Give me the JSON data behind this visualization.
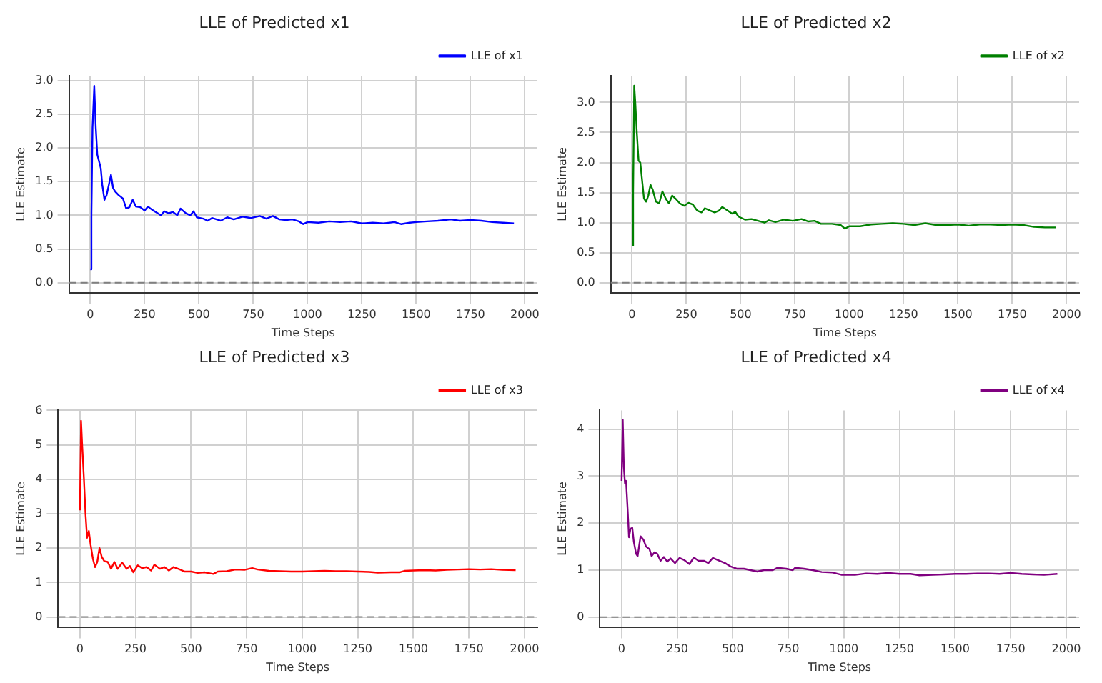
{
  "chart_data": [
    {
      "type": "line",
      "title": "LLE of Predicted x1",
      "xlabel": "Time Steps",
      "ylabel": "LLE Estimate",
      "xlim": [
        -98,
        2058
      ],
      "xticks": [
        0,
        250,
        500,
        750,
        1000,
        1250,
        1500,
        1750,
        2000
      ],
      "ylim": [
        -0.146,
        3.066
      ],
      "yticks": [
        {
          "value": 0,
          "label": "0.0"
        },
        {
          "value": 0.5,
          "label": "0.5"
        },
        {
          "value": 1,
          "label": "1.0"
        },
        {
          "value": 1.5,
          "label": "1.5"
        },
        {
          "value": 2,
          "label": "2.0"
        },
        {
          "value": 2.5,
          "label": "2.5"
        },
        {
          "value": 3,
          "label": "3.0"
        }
      ],
      "grid": true,
      "legend": "top right",
      "ref_lines": [
        {
          "axis": "y",
          "value": 0,
          "color": "#808080",
          "line_style": "dashed"
        }
      ],
      "series": [
        {
          "name": "LLE of x1",
          "color": "#0000ff",
          "x": [
            0,
            5,
            10,
            18,
            25,
            32,
            40,
            48,
            55,
            65,
            75,
            85,
            95,
            105,
            115,
            130,
            150,
            165,
            180,
            195,
            210,
            230,
            250,
            265,
            285,
            310,
            325,
            340,
            360,
            380,
            400,
            415,
            440,
            460,
            475,
            490,
            520,
            540,
            560,
            600,
            630,
            660,
            700,
            740,
            780,
            810,
            840,
            870,
            900,
            930,
            960,
            980,
            1000,
            1050,
            1100,
            1150,
            1200,
            1250,
            1300,
            1350,
            1400,
            1430,
            1470,
            1500,
            1550,
            1600,
            1660,
            1700,
            1750,
            1800,
            1850,
            1900,
            1950
          ],
          "values": [
            0.2,
            1.0,
            2.3,
            2.92,
            2.3,
            1.9,
            1.8,
            1.7,
            1.45,
            1.23,
            1.3,
            1.45,
            1.6,
            1.4,
            1.35,
            1.3,
            1.25,
            1.1,
            1.12,
            1.23,
            1.13,
            1.12,
            1.07,
            1.13,
            1.08,
            1.03,
            1.0,
            1.06,
            1.03,
            1.05,
            1.0,
            1.1,
            1.03,
            1.0,
            1.06,
            0.97,
            0.95,
            0.92,
            0.96,
            0.92,
            0.97,
            0.94,
            0.98,
            0.96,
            0.99,
            0.95,
            0.99,
            0.94,
            0.93,
            0.94,
            0.91,
            0.87,
            0.9,
            0.89,
            0.91,
            0.9,
            0.91,
            0.88,
            0.89,
            0.88,
            0.9,
            0.87,
            0.89,
            0.9,
            0.91,
            0.92,
            0.94,
            0.92,
            0.93,
            0.92,
            0.9,
            0.89,
            0.88
          ]
        }
      ]
    },
    {
      "type": "line",
      "title": "LLE of Predicted x2",
      "xlabel": "Time Steps",
      "ylabel": "LLE Estimate",
      "xlim": [
        -98,
        2058
      ],
      "xticks": [
        0,
        250,
        500,
        750,
        1000,
        1250,
        1500,
        1750,
        2000
      ],
      "ylim": [
        -0.164,
        3.44
      ],
      "yticks": [
        {
          "value": 0,
          "label": "0.0"
        },
        {
          "value": 0.5,
          "label": "0.5"
        },
        {
          "value": 1,
          "label": "1.0"
        },
        {
          "value": 1.5,
          "label": "1.5"
        },
        {
          "value": 2,
          "label": "2.0"
        },
        {
          "value": 2.5,
          "label": "2.5"
        },
        {
          "value": 3,
          "label": "3.0"
        }
      ],
      "grid": true,
      "legend": "top right",
      "ref_lines": [
        {
          "axis": "y",
          "value": 0,
          "color": "#808080",
          "line_style": "dashed"
        }
      ],
      "series": [
        {
          "name": "LLE of x2",
          "color": "#008000",
          "x": [
            0,
            5,
            10,
            15,
            22,
            30,
            38,
            45,
            55,
            65,
            75,
            85,
            95,
            110,
            125,
            140,
            155,
            170,
            185,
            200,
            220,
            240,
            260,
            280,
            300,
            320,
            335,
            360,
            380,
            400,
            415,
            440,
            460,
            475,
            490,
            520,
            550,
            580,
            610,
            630,
            660,
            700,
            740,
            780,
            810,
            840,
            870,
            920,
            960,
            980,
            1000,
            1050,
            1100,
            1150,
            1200,
            1250,
            1300,
            1350,
            1400,
            1450,
            1500,
            1550,
            1600,
            1650,
            1700,
            1750,
            1800,
            1850,
            1900,
            1950
          ],
          "values": [
            0.62,
            1.5,
            3.28,
            3.0,
            2.5,
            2.03,
            2.0,
            1.75,
            1.4,
            1.35,
            1.45,
            1.63,
            1.55,
            1.35,
            1.32,
            1.52,
            1.4,
            1.32,
            1.45,
            1.4,
            1.32,
            1.28,
            1.33,
            1.3,
            1.2,
            1.17,
            1.24,
            1.2,
            1.17,
            1.2,
            1.26,
            1.2,
            1.15,
            1.18,
            1.1,
            1.05,
            1.06,
            1.03,
            1.0,
            1.04,
            1.01,
            1.05,
            1.03,
            1.06,
            1.02,
            1.03,
            0.98,
            0.98,
            0.96,
            0.9,
            0.94,
            0.94,
            0.97,
            0.98,
            0.99,
            0.98,
            0.96,
            0.99,
            0.96,
            0.96,
            0.97,
            0.95,
            0.97,
            0.97,
            0.96,
            0.97,
            0.96,
            0.93,
            0.92,
            0.92
          ]
        }
      ]
    },
    {
      "type": "line",
      "title": "LLE of Predicted x3",
      "xlabel": "Time Steps",
      "ylabel": "LLE Estimate",
      "xlim": [
        -98,
        2058
      ],
      "xticks": [
        0,
        250,
        500,
        750,
        1000,
        1250,
        1500,
        1750,
        2000
      ],
      "ylim": [
        -0.29,
        6.0
      ],
      "yticks": [
        0,
        1,
        2,
        3,
        4,
        5,
        6
      ],
      "grid": true,
      "legend": "top right",
      "ref_lines": [
        {
          "axis": "y",
          "value": 0,
          "color": "#808080",
          "line_style": "dashed"
        }
      ],
      "series": [
        {
          "name": "LLE of x3",
          "color": "#ff0000",
          "x": [
            0,
            5,
            10,
            18,
            25,
            32,
            40,
            48,
            58,
            68,
            78,
            88,
            98,
            110,
            125,
            140,
            155,
            170,
            190,
            210,
            225,
            240,
            260,
            280,
            300,
            320,
            335,
            360,
            380,
            400,
            420,
            450,
            470,
            500,
            530,
            560,
            600,
            620,
            660,
            700,
            740,
            775,
            800,
            850,
            900,
            950,
            1000,
            1050,
            1100,
            1150,
            1200,
            1250,
            1300,
            1340,
            1400,
            1440,
            1460,
            1500,
            1550,
            1600,
            1650,
            1700,
            1750,
            1800,
            1850,
            1900,
            1960
          ],
          "values": [
            3.1,
            5.7,
            5.0,
            4.0,
            3.0,
            2.3,
            2.5,
            2.1,
            1.7,
            1.45,
            1.6,
            2.0,
            1.75,
            1.62,
            1.6,
            1.4,
            1.6,
            1.4,
            1.58,
            1.4,
            1.48,
            1.3,
            1.5,
            1.42,
            1.45,
            1.35,
            1.52,
            1.4,
            1.45,
            1.35,
            1.45,
            1.38,
            1.32,
            1.32,
            1.28,
            1.3,
            1.25,
            1.32,
            1.33,
            1.38,
            1.37,
            1.42,
            1.38,
            1.34,
            1.33,
            1.32,
            1.32,
            1.33,
            1.34,
            1.33,
            1.33,
            1.32,
            1.31,
            1.29,
            1.3,
            1.3,
            1.34,
            1.35,
            1.36,
            1.35,
            1.37,
            1.38,
            1.39,
            1.38,
            1.39,
            1.37,
            1.36
          ]
        }
      ]
    },
    {
      "type": "line",
      "title": "LLE of Predicted x4",
      "xlabel": "Time Steps",
      "ylabel": "LLE Estimate",
      "xlim": [
        -98,
        2058
      ],
      "xticks": [
        0,
        250,
        500,
        750,
        1000,
        1250,
        1500,
        1750,
        2000
      ],
      "ylim": [
        -0.21,
        4.4
      ],
      "yticks": [
        0,
        1,
        2,
        3,
        4
      ],
      "grid": true,
      "legend": "top right",
      "ref_lines": [
        {
          "axis": "y",
          "value": 0,
          "color": "#808080",
          "line_style": "dashed"
        }
      ],
      "series": [
        {
          "name": "LLE of x4",
          "color": "#800080",
          "x": [
            0,
            5,
            10,
            15,
            20,
            28,
            33,
            40,
            48,
            55,
            65,
            72,
            85,
            98,
            110,
            125,
            135,
            148,
            160,
            175,
            190,
            205,
            220,
            240,
            260,
            280,
            305,
            325,
            345,
            370,
            390,
            410,
            440,
            465,
            490,
            520,
            550,
            580,
            610,
            640,
            680,
            700,
            740,
            770,
            780,
            820,
            860,
            900,
            950,
            990,
            1050,
            1100,
            1150,
            1200,
            1250,
            1300,
            1340,
            1400,
            1450,
            1500,
            1550,
            1600,
            1650,
            1700,
            1750,
            1800,
            1850,
            1900,
            1960
          ],
          "values": [
            2.9,
            4.2,
            3.2,
            2.85,
            2.9,
            2.2,
            1.7,
            1.88,
            1.9,
            1.6,
            1.35,
            1.3,
            1.72,
            1.65,
            1.5,
            1.45,
            1.3,
            1.38,
            1.35,
            1.2,
            1.28,
            1.18,
            1.25,
            1.15,
            1.26,
            1.22,
            1.13,
            1.27,
            1.2,
            1.2,
            1.15,
            1.26,
            1.2,
            1.15,
            1.08,
            1.03,
            1.03,
            1.0,
            0.97,
            1.0,
            1.0,
            1.05,
            1.03,
            1.0,
            1.05,
            1.03,
            1.0,
            0.96,
            0.95,
            0.9,
            0.9,
            0.93,
            0.92,
            0.94,
            0.92,
            0.92,
            0.89,
            0.9,
            0.91,
            0.92,
            0.92,
            0.93,
            0.93,
            0.92,
            0.94,
            0.92,
            0.91,
            0.9,
            0.92
          ]
        }
      ]
    }
  ]
}
